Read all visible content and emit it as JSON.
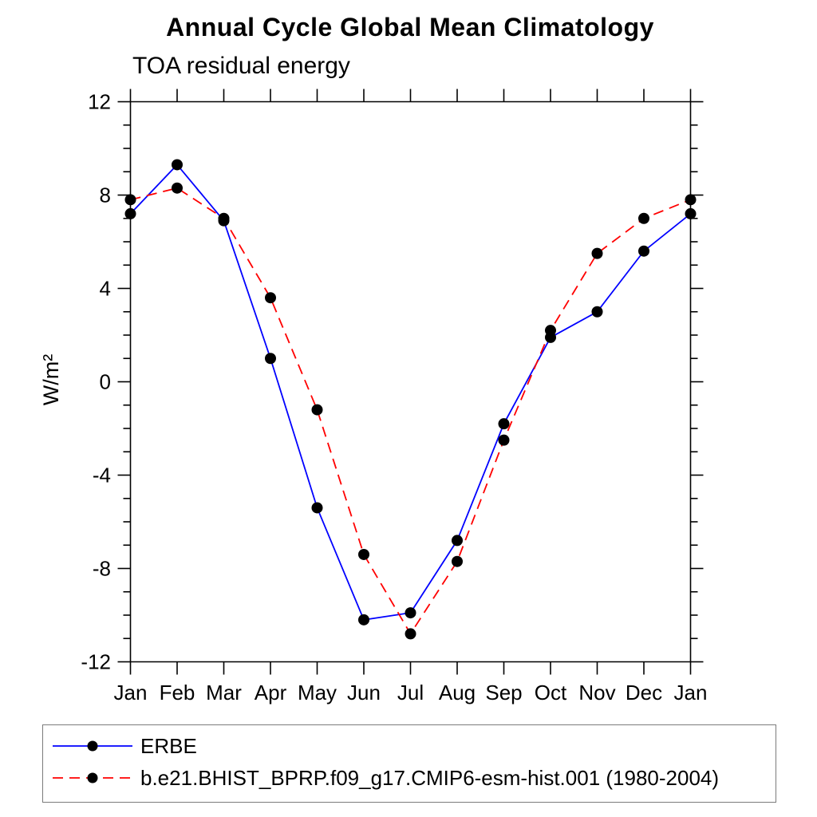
{
  "page": {
    "background_color": "#ffffff",
    "legend_border_color": "#7b7b7b"
  },
  "chart_data": {
    "type": "line",
    "title": "Annual Cycle Global Mean Climatology",
    "subtitle": "TOA residual energy",
    "xlabel": "",
    "ylabel": "W/m²",
    "categories": [
      "Jan",
      "Feb",
      "Mar",
      "Apr",
      "May",
      "Jun",
      "Jul",
      "Aug",
      "Sep",
      "Oct",
      "Nov",
      "Dec",
      "Jan"
    ],
    "ylim": [
      -12,
      12
    ],
    "y_major_ticks": [
      -12,
      -8,
      -4,
      0,
      4,
      8,
      12
    ],
    "y_minor_step": 1,
    "grid": false,
    "legend_position": "bottom",
    "series": [
      {
        "name": "ERBE",
        "color": "#0000ff",
        "style": "solid",
        "marker": "filled-circle",
        "marker_color": "#000000",
        "values": [
          7.2,
          9.3,
          6.9,
          1.0,
          -5.4,
          -10.2,
          -9.9,
          -6.8,
          -1.8,
          1.9,
          3.0,
          5.6,
          7.2
        ]
      },
      {
        "name": "b.e21.BHIST_BPRP.f09_g17.CMIP6-esm-hist.001 (1980-2004)",
        "color": "#ff0000",
        "style": "dashed",
        "marker": "filled-circle",
        "marker_color": "#000000",
        "values": [
          7.8,
          8.3,
          7.0,
          3.6,
          -1.2,
          -7.4,
          -10.8,
          -7.7,
          -2.5,
          2.2,
          5.5,
          7.0,
          7.8
        ]
      }
    ]
  }
}
